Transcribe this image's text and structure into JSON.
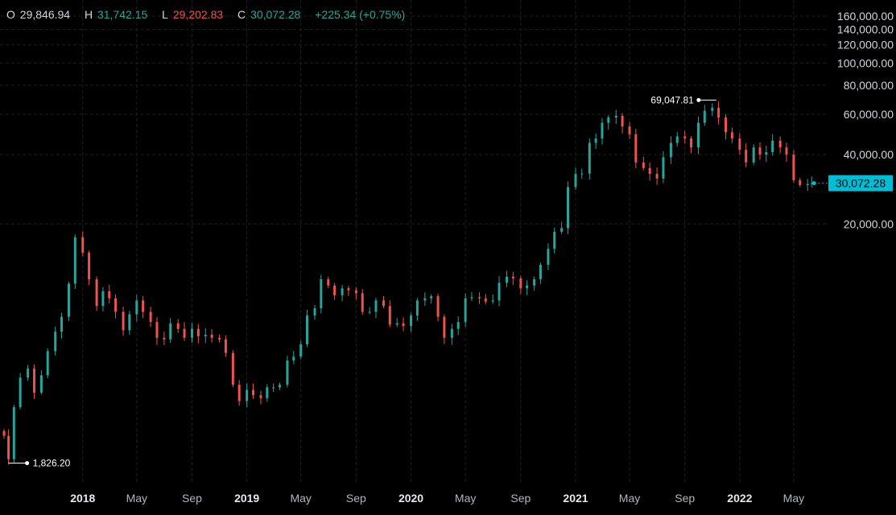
{
  "legend": {
    "o_label": "O",
    "o_value": "29,846.94",
    "h_label": "H",
    "h_value": "31,742.15",
    "l_label": "L",
    "l_value": "29,202.83",
    "c_label": "C",
    "c_value": "30,072.28",
    "change": "+225.34 (+0.75%)"
  },
  "colors": {
    "up": "#26a69a",
    "down": "#ef5350",
    "price_tag": "#00bcd4",
    "grid": "#1e1e1e",
    "background": "#000000"
  },
  "chart_data": {
    "type": "candlestick",
    "scale": "log",
    "ylim": [
      1500,
      160000
    ],
    "y_ticks": [
      {
        "value": 20000,
        "label": "20,000.00"
      },
      {
        "value": 40000,
        "label": "40,000.00"
      },
      {
        "value": 60000,
        "label": "60,000.00"
      },
      {
        "value": 80000,
        "label": "80,000.00"
      },
      {
        "value": 100000,
        "label": "100,000.00"
      },
      {
        "value": 120000,
        "label": "120,000.00"
      },
      {
        "value": 140000,
        "label": "140,000.00"
      },
      {
        "value": 160000,
        "label": "160,000.00"
      }
    ],
    "x_ticks": [
      {
        "date": "2018-01-01",
        "label": "2018",
        "major": true
      },
      {
        "date": "2018-05-01",
        "label": "May",
        "major": false
      },
      {
        "date": "2018-09-01",
        "label": "Sep",
        "major": false
      },
      {
        "date": "2019-01-01",
        "label": "2019",
        "major": true
      },
      {
        "date": "2019-05-01",
        "label": "May",
        "major": false
      },
      {
        "date": "2019-09-01",
        "label": "Sep",
        "major": false
      },
      {
        "date": "2020-01-01",
        "label": "2020",
        "major": true
      },
      {
        "date": "2020-05-01",
        "label": "May",
        "major": false
      },
      {
        "date": "2020-09-01",
        "label": "Sep",
        "major": false
      },
      {
        "date": "2021-01-01",
        "label": "2021",
        "major": true
      },
      {
        "date": "2021-05-01",
        "label": "May",
        "major": false
      },
      {
        "date": "2021-09-01",
        "label": "Sep",
        "major": false
      },
      {
        "date": "2022-01-01",
        "label": "2022",
        "major": true
      },
      {
        "date": "2022-05-01",
        "label": "May",
        "major": false
      }
    ],
    "annotations": [
      {
        "date": "2017-07-20",
        "value": 1826.2,
        "label": "1,826.20"
      },
      {
        "date": "2021-11-10",
        "value": 69047.81,
        "label": "69,047.81"
      }
    ],
    "last_price": {
      "value": 30072.28,
      "label": "30,072.28"
    },
    "series": [
      {
        "t": "2017-07-10",
        "c": 2400
      },
      {
        "t": "2017-07-20",
        "c": 1900
      },
      {
        "t": "2017-08-01",
        "c": 3200
      },
      {
        "t": "2017-08-15",
        "c": 4300
      },
      {
        "t": "2017-09-01",
        "c": 4700
      },
      {
        "t": "2017-09-15",
        "c": 3700
      },
      {
        "t": "2017-10-01",
        "c": 4400
      },
      {
        "t": "2017-10-15",
        "c": 5600
      },
      {
        "t": "2017-11-01",
        "c": 6800
      },
      {
        "t": "2017-11-15",
        "c": 7900
      },
      {
        "t": "2017-12-01",
        "c": 11000
      },
      {
        "t": "2017-12-15",
        "c": 17500
      },
      {
        "t": "2018-01-01",
        "c": 15000
      },
      {
        "t": "2018-01-15",
        "c": 11500
      },
      {
        "t": "2018-02-01",
        "c": 8800
      },
      {
        "t": "2018-02-15",
        "c": 10200
      },
      {
        "t": "2018-03-01",
        "c": 9500
      },
      {
        "t": "2018-03-15",
        "c": 8300
      },
      {
        "t": "2018-04-01",
        "c": 6900
      },
      {
        "t": "2018-04-15",
        "c": 8100
      },
      {
        "t": "2018-05-01",
        "c": 9300
      },
      {
        "t": "2018-05-15",
        "c": 8300
      },
      {
        "t": "2018-06-01",
        "c": 7500
      },
      {
        "t": "2018-06-15",
        "c": 6400
      },
      {
        "t": "2018-07-01",
        "c": 6300
      },
      {
        "t": "2018-07-15",
        "c": 7400
      },
      {
        "t": "2018-08-01",
        "c": 7000
      },
      {
        "t": "2018-08-15",
        "c": 6400
      },
      {
        "t": "2018-09-01",
        "c": 7000
      },
      {
        "t": "2018-09-15",
        "c": 6500
      },
      {
        "t": "2018-10-01",
        "c": 6600
      },
      {
        "t": "2018-10-15",
        "c": 6400
      },
      {
        "t": "2018-11-01",
        "c": 6300
      },
      {
        "t": "2018-11-15",
        "c": 5500
      },
      {
        "t": "2018-12-01",
        "c": 4000
      },
      {
        "t": "2018-12-15",
        "c": 3400
      },
      {
        "t": "2019-01-01",
        "c": 3800
      },
      {
        "t": "2019-01-15",
        "c": 3600
      },
      {
        "t": "2019-02-01",
        "c": 3500
      },
      {
        "t": "2019-02-15",
        "c": 3900
      },
      {
        "t": "2019-03-01",
        "c": 3900
      },
      {
        "t": "2019-03-15",
        "c": 4000
      },
      {
        "t": "2019-04-01",
        "c": 5100
      },
      {
        "t": "2019-04-15",
        "c": 5300
      },
      {
        "t": "2019-05-01",
        "c": 6000
      },
      {
        "t": "2019-05-15",
        "c": 8000
      },
      {
        "t": "2019-06-01",
        "c": 8600
      },
      {
        "t": "2019-06-15",
        "c": 11500
      },
      {
        "t": "2019-07-01",
        "c": 10800
      },
      {
        "t": "2019-07-15",
        "c": 9800
      },
      {
        "t": "2019-08-01",
        "c": 10500
      },
      {
        "t": "2019-08-15",
        "c": 10300
      },
      {
        "t": "2019-09-01",
        "c": 10000
      },
      {
        "t": "2019-09-15",
        "c": 8300
      },
      {
        "t": "2019-10-01",
        "c": 8300
      },
      {
        "t": "2019-10-15",
        "c": 9300
      },
      {
        "t": "2019-11-01",
        "c": 8800
      },
      {
        "t": "2019-11-15",
        "c": 7300
      },
      {
        "t": "2019-12-01",
        "c": 7400
      },
      {
        "t": "2019-12-15",
        "c": 7200
      },
      {
        "t": "2020-01-01",
        "c": 8000
      },
      {
        "t": "2020-01-15",
        "c": 9300
      },
      {
        "t": "2020-02-01",
        "c": 9500
      },
      {
        "t": "2020-02-15",
        "c": 9700
      },
      {
        "t": "2020-03-01",
        "c": 7900
      },
      {
        "t": "2020-03-15",
        "c": 6400
      },
      {
        "t": "2020-04-01",
        "c": 7000
      },
      {
        "t": "2020-04-15",
        "c": 7500
      },
      {
        "t": "2020-05-01",
        "c": 9500
      },
      {
        "t": "2020-05-15",
        "c": 9600
      },
      {
        "t": "2020-06-01",
        "c": 9500
      },
      {
        "t": "2020-06-15",
        "c": 9200
      },
      {
        "t": "2020-07-01",
        "c": 9300
      },
      {
        "t": "2020-07-15",
        "c": 11100
      },
      {
        "t": "2020-08-01",
        "c": 11800
      },
      {
        "t": "2020-08-15",
        "c": 11600
      },
      {
        "t": "2020-09-01",
        "c": 10500
      },
      {
        "t": "2020-09-15",
        "c": 10800
      },
      {
        "t": "2020-10-01",
        "c": 11500
      },
      {
        "t": "2020-10-15",
        "c": 13300
      },
      {
        "t": "2020-11-01",
        "c": 15600
      },
      {
        "t": "2020-11-15",
        "c": 18500
      },
      {
        "t": "2020-12-01",
        "c": 19200
      },
      {
        "t": "2020-12-15",
        "c": 28900
      },
      {
        "t": "2021-01-01",
        "c": 33000
      },
      {
        "t": "2021-01-15",
        "c": 33100
      },
      {
        "t": "2021-02-01",
        "c": 45000
      },
      {
        "t": "2021-02-15",
        "c": 47000
      },
      {
        "t": "2021-03-01",
        "c": 55000
      },
      {
        "t": "2021-03-15",
        "c": 58000
      },
      {
        "t": "2021-04-01",
        "c": 59000
      },
      {
        "t": "2021-04-15",
        "c": 53000
      },
      {
        "t": "2021-05-01",
        "c": 49000
      },
      {
        "t": "2021-05-15",
        "c": 37000
      },
      {
        "t": "2021-06-01",
        "c": 35000
      },
      {
        "t": "2021-06-15",
        "c": 33000
      },
      {
        "t": "2021-07-01",
        "c": 31500
      },
      {
        "t": "2021-07-15",
        "c": 39000
      },
      {
        "t": "2021-08-01",
        "c": 45000
      },
      {
        "t": "2021-08-15",
        "c": 48000
      },
      {
        "t": "2021-09-01",
        "c": 47000
      },
      {
        "t": "2021-09-15",
        "c": 43000
      },
      {
        "t": "2021-10-01",
        "c": 55000
      },
      {
        "t": "2021-10-15",
        "c": 62000
      },
      {
        "t": "2021-11-01",
        "c": 64000
      },
      {
        "t": "2021-11-15",
        "c": 58000
      },
      {
        "t": "2021-12-01",
        "c": 50000
      },
      {
        "t": "2021-12-15",
        "c": 47000
      },
      {
        "t": "2022-01-01",
        "c": 42000
      },
      {
        "t": "2022-01-15",
        "c": 37000
      },
      {
        "t": "2022-02-01",
        "c": 43000
      },
      {
        "t": "2022-02-15",
        "c": 40000
      },
      {
        "t": "2022-03-01",
        "c": 41000
      },
      {
        "t": "2022-03-15",
        "c": 46000
      },
      {
        "t": "2022-04-01",
        "c": 43000
      },
      {
        "t": "2022-04-15",
        "c": 40000
      },
      {
        "t": "2022-05-01",
        "c": 31000
      },
      {
        "t": "2022-05-15",
        "c": 29500
      },
      {
        "t": "2022-06-01",
        "c": 29846.94
      },
      {
        "t": "2022-06-10",
        "c": 30072.28
      }
    ]
  }
}
